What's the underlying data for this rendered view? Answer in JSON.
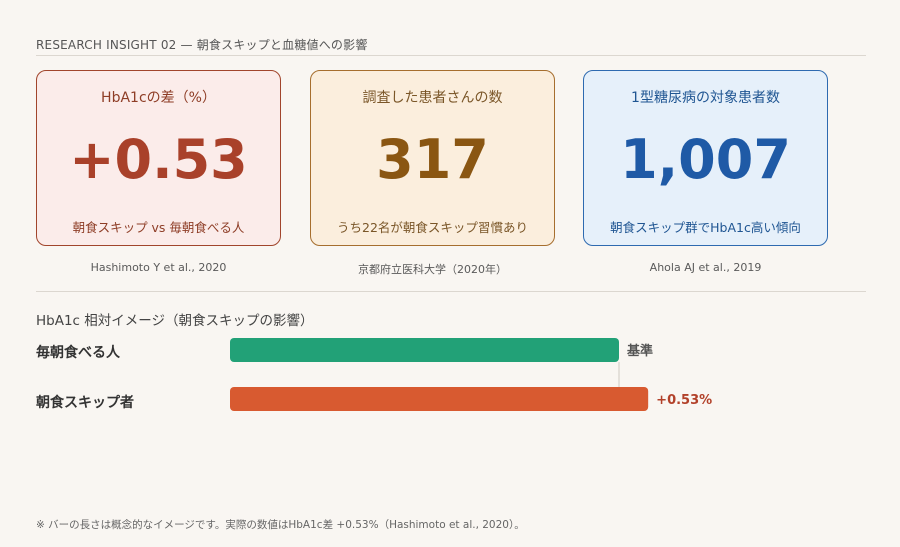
{
  "header": {
    "title": "RESEARCH INSIGHT 02 — 朝食スキップと血糖値への影響"
  },
  "cards": [
    {
      "label": "HbA1cの差（%）",
      "value": "+0.53",
      "sub": "朝食スキップ vs 毎朝食べる人",
      "source": "Hashimoto Y et al., 2020"
    },
    {
      "label": "調査した患者さんの数",
      "value": "317",
      "sub": "うち22名が朝食スキップ習慣あり",
      "source": "京都府立医科大学（2020年）"
    },
    {
      "label": "1型糖尿病の対象患者数",
      "value": "1,007",
      "sub": "朝食スキップ群でHbA1c高い傾向",
      "source": "Ahola AJ et al., 2019"
    }
  ],
  "section": {
    "title": "HbA1c 相対イメージ（朝食スキップの影響）"
  },
  "chart_data": {
    "type": "bar",
    "orientation": "horizontal",
    "title": "HbA1c 相対イメージ（朝食スキップの影響）",
    "categories": [
      "毎朝食べる人",
      "朝食スキップ者"
    ],
    "values": [
      100,
      107.5
    ],
    "value_labels": [
      "基準",
      "+0.53%"
    ],
    "colors": [
      "#22a177",
      "#d85a30"
    ],
    "label_colors": [
      "#555555",
      "#b2412a"
    ]
  },
  "footnote": "※ バーの長さは概念的なイメージです。実際の数値はHbA1c差 +0.53%（Hashimoto et al., 2020）。"
}
